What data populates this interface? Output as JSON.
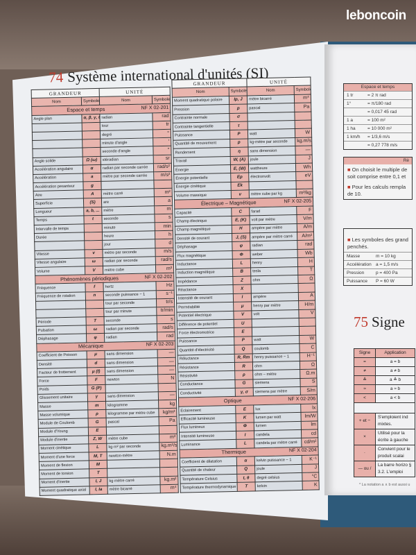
{
  "watermark": "leboncoin",
  "page74": {
    "number": "74",
    "title": "Système international d'unités (SI)",
    "headers": {
      "grandeur": "GRANDEUR",
      "unite": "UNITÉ",
      "nom": "Nom",
      "symbole": "Symbole"
    },
    "left_column": [
      {
        "section": "Espace et temps",
        "norm": "NF X 02-201",
        "rows": [
          [
            "Angle plan",
            "α, β, γ, θ, φ etc.",
            "radian",
            "rad"
          ],
          [
            "",
            "",
            "tour",
            "tr"
          ],
          [
            "",
            "",
            "degré",
            "°"
          ],
          [
            "",
            "",
            "minute d'angle",
            "′"
          ],
          [
            "",
            "",
            "seconde d'angle",
            "″"
          ],
          [
            "Angle solide",
            "Ω (ω)",
            "stéradian",
            "sr"
          ],
          [
            "Accélération angulaire",
            "α",
            "radian par seconde carrée",
            "rad/s²"
          ],
          [
            "Accélération",
            "a",
            "mètre par seconde carrée",
            "m/s²"
          ],
          [
            "Accélération pesanteur",
            "g",
            "",
            ""
          ],
          [
            "Aire",
            "A",
            "mètre carré",
            "m²"
          ],
          [
            "Superficie",
            "(S)",
            "are",
            "a"
          ],
          [
            "Longueur",
            "a, b, ...",
            "mètre",
            "m"
          ],
          [
            "Temps",
            "t",
            "seconde",
            "s"
          ],
          [
            "Intervalle de temps",
            "",
            "minute",
            "min"
          ],
          [
            "Durée",
            "",
            "heure",
            "h"
          ],
          [
            "",
            "",
            "jour",
            "d"
          ],
          [
            "Vitesse",
            "v",
            "mètre par seconde",
            "m/s"
          ],
          [
            "Vitesse angulaire",
            "ω",
            "radian par seconde",
            "rad/s"
          ],
          [
            "Volume",
            "V",
            "mètre cube",
            "m³"
          ]
        ]
      },
      {
        "section": "Phénomènes périodiques",
        "norm": "NF X 02-202",
        "rows": [
          [
            "Fréquence",
            "f",
            "hertz",
            "Hz"
          ],
          [
            "Fréquence de rotation",
            "n",
            "seconde puissance − 1",
            "s⁻¹"
          ],
          [
            "",
            "",
            "tour par seconde",
            "tr/s"
          ],
          [
            "",
            "",
            "tour par minute",
            "tr/min"
          ],
          [
            "Période",
            "T",
            "seconde",
            "s"
          ],
          [
            "Pulsation",
            "ω",
            "radian par seconde",
            "rad/s"
          ],
          [
            "Déphasage",
            "φ",
            "radian",
            "rad"
          ]
        ]
      },
      {
        "section": "Mécanique",
        "norm": "NF X 02-203",
        "rows": [
          [
            "Coefficient de Poisson",
            "μ",
            "sans dimension",
            "—"
          ],
          [
            "Densité",
            "d",
            "sans dimension",
            "—"
          ],
          [
            "Facteur de frottement",
            "μ (f)",
            "sans dimension",
            "—"
          ],
          [
            "Force",
            "F",
            "newton",
            "N"
          ],
          [
            "Poids",
            "G (P)",
            "",
            ""
          ],
          [
            "Glissement unitaire",
            "γ",
            "sans dimension",
            "—"
          ],
          [
            "Masse",
            "m",
            "kilogramme",
            "kg"
          ],
          [
            "Masse volumique",
            "ρ",
            "kilogramme par mètre cube",
            "kg/m³"
          ],
          [
            "Module de Coulomb",
            "G",
            "pascal",
            "Pa"
          ],
          [
            "Module d'Young",
            "E",
            "",
            ""
          ],
          [
            "Module d'inertie",
            "Z, W",
            "mètre cube",
            "m³"
          ],
          [
            "Moment cinétique",
            "L",
            "kg·m² par seconde",
            "kg.m²/s"
          ],
          [
            "Moment d'une force",
            "M, T",
            "newton-mètre",
            "N.m"
          ],
          [
            "Moment de flexion",
            "M",
            "",
            ""
          ],
          [
            "Moment de torsion",
            "T",
            "",
            ""
          ],
          [
            "Moment d'inertie",
            "I, J",
            "kg·mètre carré",
            "kg.m²"
          ],
          [
            "Moment quadratique axial",
            "I, Ia",
            "mètre bicarré",
            "m⁴"
          ]
        ]
      }
    ],
    "right_column": [
      {
        "section": "",
        "norm": "",
        "rows": [
          [
            "Moment quadratique polaire",
            "Ip, J",
            "mètre bicarré",
            "m⁴"
          ],
          [
            "Pression",
            "p",
            "pascal",
            "Pa"
          ],
          [
            "Contrainte normale",
            "σ",
            "",
            ""
          ],
          [
            "Contrainte tangentielle",
            "τ",
            "",
            ""
          ],
          [
            "Puissance",
            "P",
            "watt",
            "W"
          ],
          [
            "Quantité de mouvement",
            "p",
            "kg-mètre par seconde",
            "kg.m/s"
          ],
          [
            "Rendement",
            "η",
            "sans dimension",
            "—"
          ],
          [
            "Travail",
            "W, (A)",
            "joule",
            "J"
          ],
          [
            "Énergie",
            "E, (W)",
            "wattheure",
            "Wh"
          ],
          [
            "Énergie potentielle",
            "Ep",
            "électronvolt",
            "eV"
          ],
          [
            "Énergie cinétique",
            "Ek",
            "",
            ""
          ],
          [
            "Volume massique",
            "v",
            "mètre cube par kg",
            "m³/kg"
          ]
        ]
      },
      {
        "section": "Électrique – Magnétique",
        "norm": "NF X 02-205",
        "rows": [
          [
            "Capacité",
            "C",
            "farad",
            "F"
          ],
          [
            "Champ électrique",
            "E, (K)",
            "volt par mètre",
            "V/m"
          ],
          [
            "Champ magnétique",
            "H",
            "ampère par mètre",
            "A/m"
          ],
          [
            "Densité de courant",
            "J, (S)",
            "ampère par mètre carré",
            "A/m²"
          ],
          [
            "Déphasage",
            "φ",
            "radian",
            "rad"
          ],
          [
            "Flux magnétique",
            "Φ",
            "weber",
            "Wb"
          ],
          [
            "Inductance",
            "L",
            "henry",
            "H"
          ],
          [
            "Induction magnétique",
            "B",
            "tesla",
            "T"
          ],
          [
            "Impédance",
            "Z",
            "ohm",
            "Ω"
          ],
          [
            "Réactance",
            "X",
            "",
            ""
          ],
          [
            "Intensité de courant",
            "I",
            "ampère",
            "A"
          ],
          [
            "Perméabilité",
            "μ",
            "henry par mètre",
            "H/m"
          ],
          [
            "Potentiel électrique",
            "V",
            "volt",
            "V"
          ],
          [
            "Différence de potentiel",
            "U",
            "",
            ""
          ],
          [
            "Force électromotrice",
            "E",
            "",
            ""
          ],
          [
            "Puissance",
            "P",
            "watt",
            "W"
          ],
          [
            "Quantité d'électricité",
            "Q",
            "coulomb",
            "C"
          ],
          [
            "Réluctance",
            "R, Rm",
            "henry puissance − 1",
            "H⁻¹"
          ],
          [
            "Résistance",
            "R",
            "ohm",
            "Ω"
          ],
          [
            "Résistivité",
            "ρ",
            "ohm – mètre",
            "Ω.m"
          ],
          [
            "Conductance",
            "G",
            "siemens",
            "S"
          ],
          [
            "Conductivité",
            "γ, σ",
            "siemens par mètre",
            "S/m"
          ]
        ]
      },
      {
        "section": "Optique",
        "norm": "NF X 02-206",
        "rows": [
          [
            "Éclairement",
            "E",
            "lux",
            "lx"
          ],
          [
            "Efficacité lumineuse",
            "K",
            "lumen par watt",
            "lm/W"
          ],
          [
            "Flux lumineux",
            "Φ",
            "lumen",
            "lm"
          ],
          [
            "Intensité lumineuse",
            "I",
            "candela",
            "cd"
          ],
          [
            "Luminance",
            "L",
            "candela par mètre carré",
            "cd/m²"
          ]
        ]
      },
      {
        "section": "Thermique",
        "norm": "NF X 02-204",
        "rows": [
          [
            "Coefficient de dilatation",
            "α",
            "kelvin puissance − 1",
            "K⁻¹"
          ],
          [
            "Quantité de chaleur",
            "Q",
            "joule",
            "J"
          ],
          [
            "Température Celsius",
            "t, θ",
            "degré celsius",
            "°C"
          ],
          [
            "Température thermodynamique",
            "T",
            "kelvin",
            "K"
          ]
        ]
      }
    ]
  },
  "right_page": {
    "espace_box": {
      "title": "Espace et temps",
      "rows": [
        [
          "1 tr",
          "= 2 π rad"
        ],
        [
          "1°",
          "= π/180 rad"
        ],
        [
          "",
          "= 0,017 45 rad"
        ],
        [
          "1 a",
          "= 100 m²"
        ],
        [
          "1 ha",
          "= 10 000 m²"
        ],
        [
          "1 km/h",
          "= 1/3,6 m/s"
        ],
        [
          "",
          "= 0,27 778 m/s"
        ]
      ]
    },
    "regles_box": {
      "title": "Rè",
      "p1": "On choisit le multiple de soit comprise entre 0,1 et",
      "p2": "Pour les calculs rempla de 10."
    },
    "symbols_box": {
      "p1": "Les symboles des grand penchés.",
      "rows": [
        [
          "Masse",
          "m = 10 kg"
        ],
        [
          "Accélération",
          "a = 1,5 m/s"
        ],
        [
          "Pression",
          "p = 400 Pa"
        ],
        [
          "Puissance",
          "P = 60 W"
        ]
      ]
    },
    "section75": {
      "number": "75",
      "title": "Signe",
      "headers": [
        "Signe",
        "Application"
      ],
      "rows": [
        [
          "=",
          "a = b"
        ],
        [
          "≠",
          "a ≠ b"
        ],
        [
          "≙",
          "a ≙ b"
        ],
        [
          "≈",
          "a ≈ b"
        ],
        [
          "<",
          "a < b"
        ]
      ],
      "notes": [
        [
          "+ et −",
          "S'emploient ind mixtes."
        ],
        [
          "×",
          "Utilisé pour la écrite à gauche"
        ],
        [
          "·",
          "Convient pour le produit scalai"
        ],
        [
          "— ou /",
          "La barre horizo § 3.2. L'emploi"
        ]
      ],
      "footnote": "* La notation a ∧ b est aussi u"
    }
  },
  "colors": {
    "pink": "#e9b5ae",
    "gray": "#d9dee4",
    "red": "#c0392b",
    "cover": "#2e5a7a"
  }
}
